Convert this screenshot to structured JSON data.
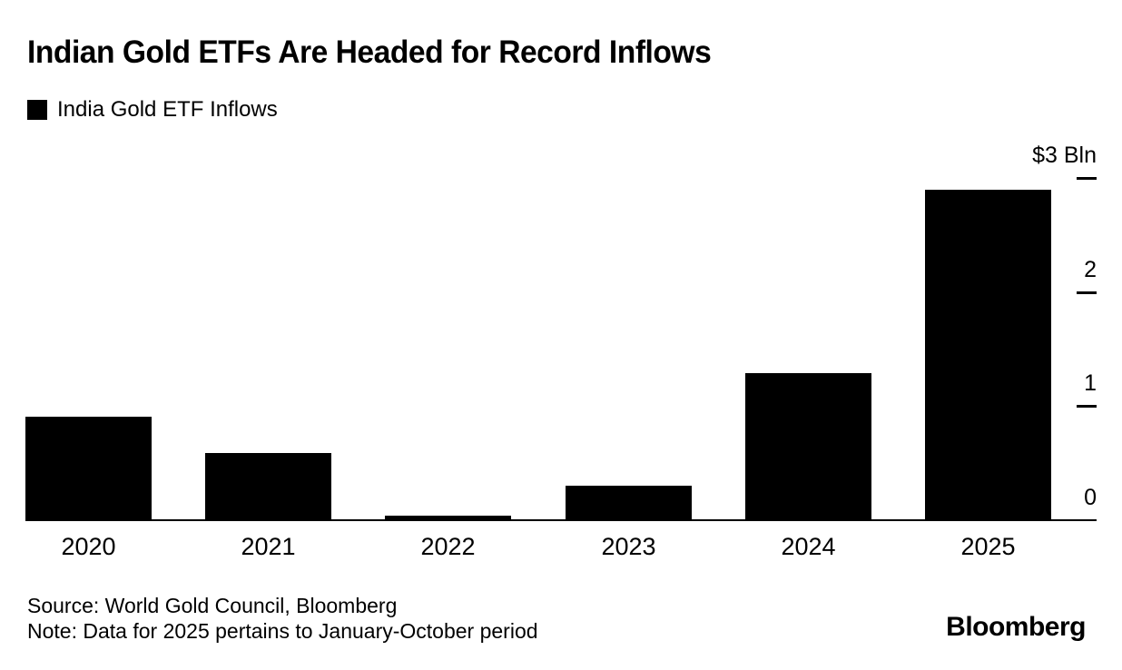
{
  "chart_data": {
    "type": "bar",
    "title": "Indian Gold ETFs Are Headed for Record Inflows",
    "legend": [
      {
        "label": "India Gold ETF Inflows",
        "color": "#000000"
      }
    ],
    "categories": [
      "2020",
      "2021",
      "2022",
      "2023",
      "2024",
      "2025"
    ],
    "values": [
      0.91,
      0.59,
      0.04,
      0.3,
      1.29,
      2.9
    ],
    "unit": "$ Bln",
    "ylabel": "",
    "xlabel": "",
    "ylim": [
      0,
      3
    ],
    "y_ticks": [
      {
        "label": "$3 Bln",
        "value": 3
      },
      {
        "label": "2",
        "value": 2
      },
      {
        "label": "1",
        "value": 1
      },
      {
        "label": "0",
        "value": 0
      }
    ],
    "bar_color": "#000000",
    "axis_color": "#000000",
    "background_color": "#ffffff",
    "grid": false,
    "legend_position": "top-left",
    "axis_side": "right"
  },
  "footer": {
    "source": "Source: World Gold Council, Bloomberg",
    "note": "Note: Data for 2025 pertains to January-October period",
    "brand": "Bloomberg"
  }
}
